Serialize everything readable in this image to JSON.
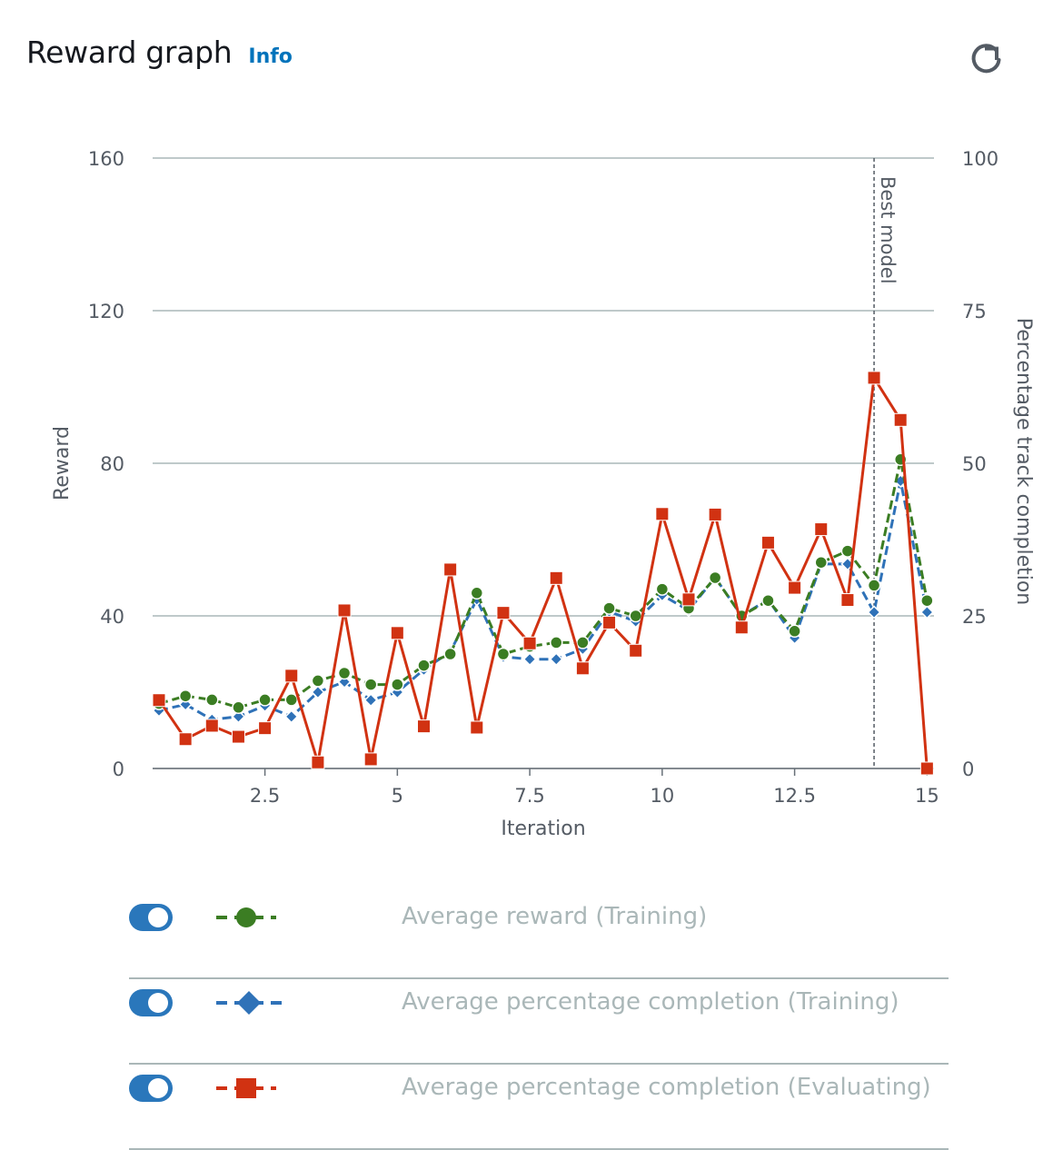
{
  "header": {
    "title": "Reward graph",
    "info_label": "Info",
    "refresh_icon": "refresh-icon"
  },
  "chart_data": {
    "type": "line",
    "title": "",
    "xlabel": "Iteration",
    "ylabel": "Reward",
    "y2label": "Percentage track completion",
    "xlim": [
      0.5,
      15
    ],
    "ylim": [
      0,
      160
    ],
    "y2lim": [
      0,
      100
    ],
    "x_ticks": [
      "2.5",
      "5",
      "7.5",
      "10",
      "12.5",
      "15"
    ],
    "y_ticks": [
      "0",
      "40",
      "80",
      "120",
      "160"
    ],
    "y2_ticks": [
      "0",
      "25",
      "50",
      "75",
      "100"
    ],
    "grid": true,
    "annotation": {
      "x": 14,
      "label": "Best model"
    },
    "x": [
      0.5,
      1,
      1.5,
      2,
      2.5,
      3,
      3.5,
      4,
      4.5,
      5,
      5.5,
      6,
      6.5,
      7,
      7.5,
      8,
      8.5,
      9,
      9.5,
      10,
      10.5,
      11,
      11.5,
      12,
      12.5,
      13,
      13.5,
      14,
      14.5,
      15
    ],
    "series": [
      {
        "name": "Average reward (Training)",
        "axis": "left",
        "color": "#3b7d23",
        "marker": "circle",
        "dash": true,
        "values": [
          17,
          19,
          18,
          16,
          18,
          18,
          23,
          25,
          22,
          22,
          27,
          30,
          46,
          30,
          32,
          33,
          33,
          42,
          40,
          47,
          42,
          50,
          40,
          44,
          36,
          54,
          57,
          48,
          81,
          44
        ]
      },
      {
        "name": "Average percentage completion (Training)",
        "axis": "right",
        "color": "#2f72b8",
        "marker": "diamond",
        "dash": true,
        "values": [
          9.5,
          10.5,
          8,
          8.5,
          10.3,
          8.5,
          12.5,
          14.2,
          11.2,
          12.5,
          16.2,
          19.1,
          27.7,
          18.3,
          17.9,
          17.9,
          19.6,
          25.7,
          24.1,
          28.4,
          25.9,
          31.3,
          25,
          27.7,
          21.4,
          33.5,
          33.5,
          25.6,
          47.1,
          25.6
        ]
      },
      {
        "name": "Average percentage completion (Evaluating)",
        "axis": "right",
        "color": "#d13212",
        "marker": "square",
        "dash": false,
        "values": [
          11.2,
          4.8,
          7,
          5.2,
          6.6,
          15.2,
          1,
          25.9,
          1.5,
          22.2,
          6.9,
          32.6,
          6.7,
          25.5,
          20.5,
          31.2,
          16.4,
          23.9,
          19.3,
          41.7,
          27.7,
          41.6,
          23.1,
          37,
          29.6,
          39.2,
          27.6,
          64,
          57.1,
          0
        ]
      }
    ],
    "legend": [
      {
        "label": "Average reward (Training)",
        "enabled": true
      },
      {
        "label": "Average percentage completion (Training)",
        "enabled": true
      },
      {
        "label": "Average percentage completion (Evaluating)",
        "enabled": true
      }
    ]
  }
}
